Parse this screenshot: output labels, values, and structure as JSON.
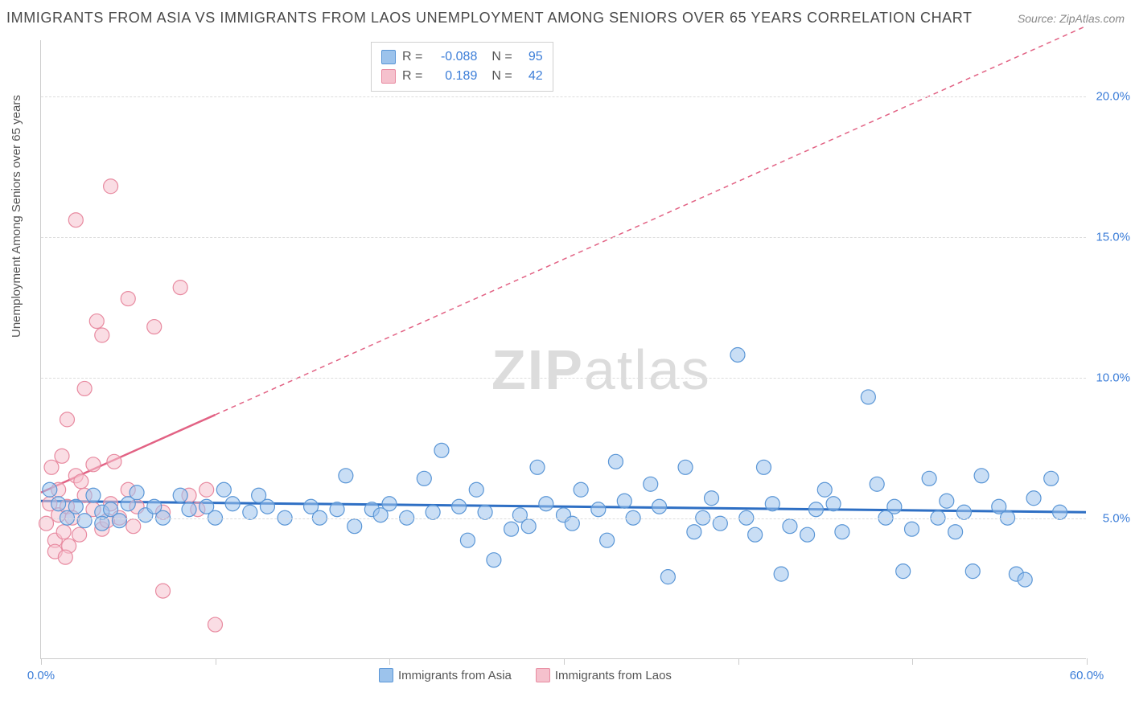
{
  "title": "IMMIGRANTS FROM ASIA VS IMMIGRANTS FROM LAOS UNEMPLOYMENT AMONG SENIORS OVER 65 YEARS CORRELATION CHART",
  "source_label": "Source: ZipAtlas.com",
  "y_axis_label": "Unemployment Among Seniors over 65 years",
  "watermark": {
    "bold": "ZIP",
    "light": "atlas"
  },
  "chart": {
    "type": "scatter",
    "xlim": [
      0,
      60
    ],
    "ylim": [
      0,
      22
    ],
    "x_ticks": [
      0,
      10,
      20,
      30,
      40,
      50,
      60
    ],
    "x_tick_labels": {
      "0": "0.0%",
      "60": "60.0%"
    },
    "y_ticks": [
      5,
      10,
      15,
      20
    ],
    "y_tick_labels": [
      "5.0%",
      "10.0%",
      "15.0%",
      "20.0%"
    ],
    "grid_color": "#dddddd",
    "background_color": "#ffffff",
    "marker_radius": 9,
    "marker_opacity": 0.55,
    "marker_stroke_width": 1.2,
    "series": [
      {
        "name": "Immigrants from Asia",
        "color": "#9cc3ec",
        "stroke": "#5a96d6",
        "line_color": "#2e6fc4",
        "R": "-0.088",
        "N": "95",
        "regression": {
          "x1": 0,
          "y1": 5.6,
          "x2": 60,
          "y2": 5.2
        },
        "points": [
          [
            0.5,
            6.0
          ],
          [
            1,
            5.5
          ],
          [
            1.5,
            5.0
          ],
          [
            2,
            5.4
          ],
          [
            2.5,
            4.9
          ],
          [
            3,
            5.8
          ],
          [
            3.5,
            5.2
          ],
          [
            3.5,
            4.8
          ],
          [
            4,
            5.3
          ],
          [
            4.5,
            4.9
          ],
          [
            5,
            5.5
          ],
          [
            5.5,
            5.9
          ],
          [
            6,
            5.1
          ],
          [
            6.5,
            5.4
          ],
          [
            7,
            5.0
          ],
          [
            8,
            5.8
          ],
          [
            8.5,
            5.3
          ],
          [
            9.5,
            5.4
          ],
          [
            10,
            5.0
          ],
          [
            10.5,
            6.0
          ],
          [
            11,
            5.5
          ],
          [
            12,
            5.2
          ],
          [
            12.5,
            5.8
          ],
          [
            13,
            5.4
          ],
          [
            14,
            5.0
          ],
          [
            15.5,
            5.4
          ],
          [
            16,
            5.0
          ],
          [
            17,
            5.3
          ],
          [
            17.5,
            6.5
          ],
          [
            18,
            4.7
          ],
          [
            19,
            5.3
          ],
          [
            19.5,
            5.1
          ],
          [
            20,
            5.5
          ],
          [
            21,
            5.0
          ],
          [
            22,
            6.4
          ],
          [
            22.5,
            5.2
          ],
          [
            23,
            7.4
          ],
          [
            24,
            5.4
          ],
          [
            24.5,
            4.2
          ],
          [
            25,
            6.0
          ],
          [
            25.5,
            5.2
          ],
          [
            26,
            3.5
          ],
          [
            27,
            4.6
          ],
          [
            27.5,
            5.1
          ],
          [
            28,
            4.7
          ],
          [
            28.5,
            6.8
          ],
          [
            29,
            5.5
          ],
          [
            30,
            5.1
          ],
          [
            30.5,
            4.8
          ],
          [
            31,
            6.0
          ],
          [
            32,
            5.3
          ],
          [
            32.5,
            4.2
          ],
          [
            33,
            7.0
          ],
          [
            33.5,
            5.6
          ],
          [
            34,
            5.0
          ],
          [
            35,
            6.2
          ],
          [
            35.5,
            5.4
          ],
          [
            36,
            2.9
          ],
          [
            37,
            6.8
          ],
          [
            37.5,
            4.5
          ],
          [
            38,
            5.0
          ],
          [
            38.5,
            5.7
          ],
          [
            39,
            4.8
          ],
          [
            40,
            10.8
          ],
          [
            40.5,
            5.0
          ],
          [
            41,
            4.4
          ],
          [
            41.5,
            6.8
          ],
          [
            42,
            5.5
          ],
          [
            42.5,
            3.0
          ],
          [
            43,
            4.7
          ],
          [
            44,
            4.4
          ],
          [
            44.5,
            5.3
          ],
          [
            45,
            6.0
          ],
          [
            45.5,
            5.5
          ],
          [
            46,
            4.5
          ],
          [
            47.5,
            9.3
          ],
          [
            48,
            6.2
          ],
          [
            48.5,
            5.0
          ],
          [
            49,
            5.4
          ],
          [
            49.5,
            3.1
          ],
          [
            50,
            4.6
          ],
          [
            51,
            6.4
          ],
          [
            51.5,
            5.0
          ],
          [
            52,
            5.6
          ],
          [
            52.5,
            4.5
          ],
          [
            53,
            5.2
          ],
          [
            53.5,
            3.1
          ],
          [
            54,
            6.5
          ],
          [
            55,
            5.4
          ],
          [
            55.5,
            5.0
          ],
          [
            56,
            3.0
          ],
          [
            56.5,
            2.8
          ],
          [
            57,
            5.7
          ],
          [
            58,
            6.4
          ],
          [
            58.5,
            5.2
          ]
        ]
      },
      {
        "name": "Immigrants from Laos",
        "color": "#f5c1cd",
        "stroke": "#e88aa0",
        "line_color": "#e26284",
        "R": "0.189",
        "N": "42",
        "regression": {
          "x1": 0,
          "y1": 5.9,
          "solid_end_x": 10,
          "x2": 60,
          "y2": 22.5
        },
        "points": [
          [
            0.3,
            4.8
          ],
          [
            0.5,
            5.5
          ],
          [
            0.8,
            4.2
          ],
          [
            1,
            6.0
          ],
          [
            1,
            5.1
          ],
          [
            1.2,
            7.2
          ],
          [
            1.3,
            4.5
          ],
          [
            1.5,
            5.4
          ],
          [
            1.5,
            8.5
          ],
          [
            1.6,
            4.0
          ],
          [
            1.8,
            5.0
          ],
          [
            2,
            6.5
          ],
          [
            2,
            15.6
          ],
          [
            2.2,
            4.4
          ],
          [
            2.5,
            5.8
          ],
          [
            2.5,
            9.6
          ],
          [
            3,
            5.3
          ],
          [
            3,
            6.9
          ],
          [
            3.2,
            12.0
          ],
          [
            3.5,
            4.6
          ],
          [
            3.5,
            11.5
          ],
          [
            4,
            5.5
          ],
          [
            4,
            16.8
          ],
          [
            4.2,
            7.0
          ],
          [
            4.5,
            5.0
          ],
          [
            5,
            6.0
          ],
          [
            5,
            12.8
          ],
          [
            5.3,
            4.7
          ],
          [
            5.5,
            5.4
          ],
          [
            6.5,
            11.8
          ],
          [
            7,
            5.2
          ],
          [
            7,
            2.4
          ],
          [
            8,
            13.2
          ],
          [
            8.5,
            5.8
          ],
          [
            9,
            5.3
          ],
          [
            9.5,
            6.0
          ],
          [
            10,
            1.2
          ],
          [
            0.8,
            3.8
          ],
          [
            1.4,
            3.6
          ],
          [
            2.3,
            6.3
          ],
          [
            3.8,
            4.9
          ],
          [
            0.6,
            6.8
          ]
        ]
      }
    ]
  },
  "legend": {
    "items": [
      {
        "label": "Immigrants from Asia",
        "fill": "#9cc3ec",
        "stroke": "#5a96d6"
      },
      {
        "label": "Immigrants from Laos",
        "fill": "#f5c1cd",
        "stroke": "#e88aa0"
      }
    ]
  }
}
